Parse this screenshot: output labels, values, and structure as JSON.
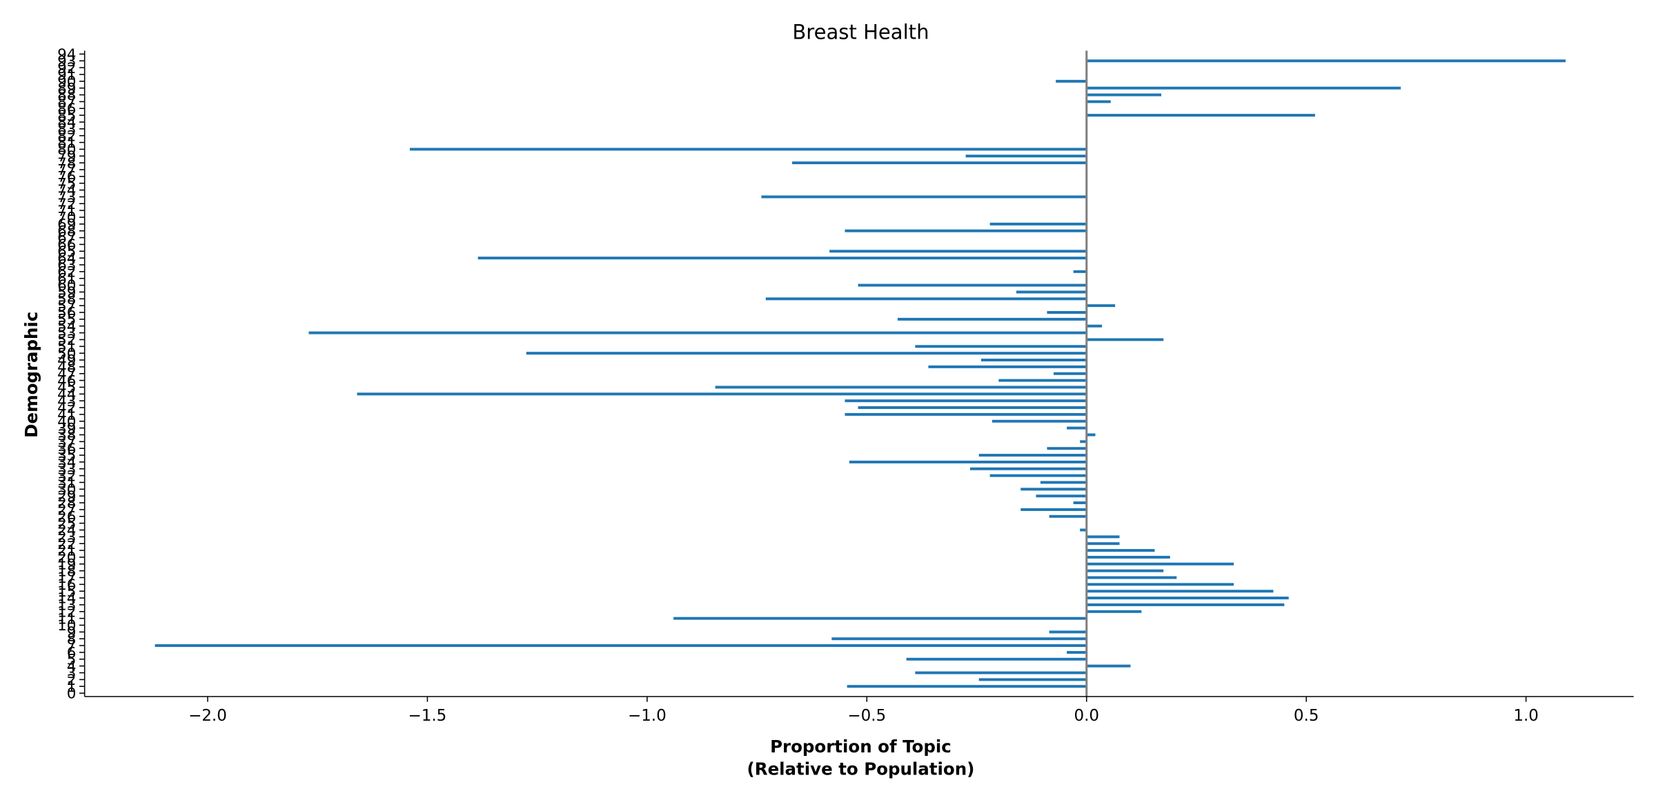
{
  "chart_data": {
    "type": "barh",
    "title": "Breast Health",
    "xlabel": [
      "Proportion of Topic",
      "(Relative to Population)"
    ],
    "ylabel": "Demographic",
    "categories": [
      "0",
      "1",
      "2",
      "3",
      "4",
      "5",
      "6",
      "7",
      "8",
      "9",
      "10",
      "11",
      "12",
      "13",
      "14",
      "15",
      "16",
      "17",
      "18",
      "19",
      "20",
      "21",
      "22",
      "23",
      "24",
      "25",
      "26",
      "27",
      "28",
      "29",
      "30",
      "31",
      "32",
      "33",
      "34",
      "35",
      "36",
      "37",
      "38",
      "39",
      "40",
      "41",
      "42",
      "43",
      "44",
      "45",
      "46",
      "47",
      "48",
      "49",
      "50",
      "51",
      "52",
      "53",
      "54",
      "55",
      "56",
      "57",
      "58",
      "59",
      "60",
      "61",
      "62",
      "63",
      "64",
      "65",
      "66",
      "67",
      "68",
      "69",
      "70",
      "71",
      "72",
      "73",
      "74",
      "75",
      "76",
      "77",
      "78",
      "79",
      "80",
      "81",
      "82",
      "83",
      "84",
      "85",
      "86",
      "87",
      "88",
      "89",
      "90",
      "91",
      "92",
      "93",
      "94"
    ],
    "values": [
      0,
      -0.545,
      -0.245,
      -0.39,
      0.1,
      -0.41,
      -0.045,
      -2.12,
      -0.58,
      -0.085,
      0,
      -0.94,
      0.125,
      0.45,
      0.46,
      0.425,
      0.335,
      0.205,
      0.175,
      0.335,
      0.19,
      0.155,
      0.075,
      0.075,
      -0.015,
      0,
      -0.085,
      -0.15,
      -0.03,
      -0.115,
      -0.15,
      -0.105,
      -0.22,
      -0.265,
      -0.54,
      -0.245,
      -0.09,
      -0.015,
      0.02,
      -0.045,
      -0.215,
      -0.55,
      -0.52,
      -0.55,
      -1.66,
      -0.845,
      -0.2,
      -0.075,
      -0.36,
      -0.24,
      -1.275,
      -0.39,
      0.175,
      -1.77,
      0.035,
      -0.43,
      -0.09,
      0.065,
      -0.73,
      -0.16,
      -0.52,
      0,
      -0.03,
      0,
      -1.385,
      -0.585,
      0,
      0,
      -0.55,
      -0.22,
      0,
      0,
      0,
      -0.74,
      0,
      0,
      0,
      0,
      -0.67,
      -0.275,
      -1.54,
      0,
      0,
      0,
      0,
      0.52,
      0,
      0.055,
      0.17,
      0.715,
      -0.07,
      0,
      0,
      1.09,
      0
    ],
    "color": "#1f77b4",
    "xlim": [
      -2.28,
      1.245
    ],
    "xticks": [
      {
        "value": -2,
        "label": "−2.0"
      },
      {
        "value": -1.5,
        "label": "−1.5"
      },
      {
        "value": -1,
        "label": "−1.0"
      },
      {
        "value": -0.5,
        "label": "−0.5"
      },
      {
        "value": 0,
        "label": "0.0"
      },
      0.5,
      {
        "value": 1,
        "label": "1.0"
      }
    ]
  }
}
